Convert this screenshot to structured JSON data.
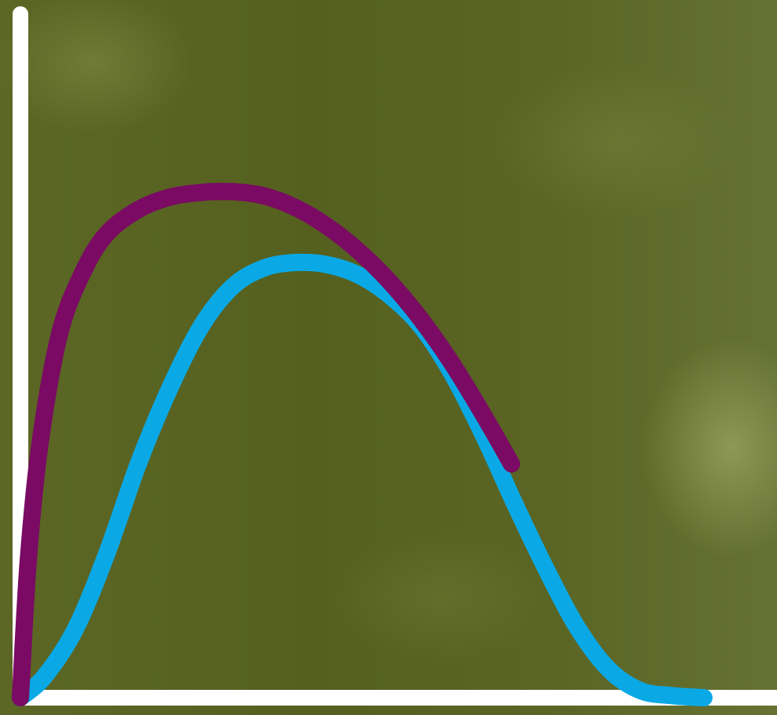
{
  "chart_data": {
    "type": "line",
    "title": "",
    "xlabel": "",
    "ylabel": "",
    "xlim": [
      0,
      100
    ],
    "ylim": [
      0,
      100
    ],
    "grid": false,
    "legend": "none",
    "axis_color": "#ffffff",
    "background_color": "#55601f",
    "series": [
      {
        "color": "#7a0a63",
        "x": [
          0,
          1,
          2.5,
          5,
          8,
          11,
          15,
          19,
          23,
          27,
          31,
          35,
          39,
          43,
          47,
          51,
          55,
          59,
          62.5
        ],
        "y": [
          0,
          20,
          37,
          53,
          62,
          67.5,
          71,
          72.8,
          73.5,
          73.6,
          73,
          71.3,
          68.6,
          65,
          60.5,
          55,
          48.5,
          41,
          34
        ]
      },
      {
        "color": "#0aa9e6",
        "x": [
          0,
          3,
          7,
          11,
          15,
          19,
          23,
          27,
          31,
          35,
          39,
          43,
          47,
          51,
          55,
          59,
          63,
          67,
          71,
          75,
          79,
          83,
          87
        ],
        "y": [
          0,
          3,
          10,
          21,
          34,
          45,
          54,
          59.8,
          62.5,
          63.3,
          63,
          61.5,
          58.5,
          54,
          47,
          38,
          28,
          18.5,
          10,
          4,
          1,
          0.3,
          0
        ]
      }
    ]
  }
}
